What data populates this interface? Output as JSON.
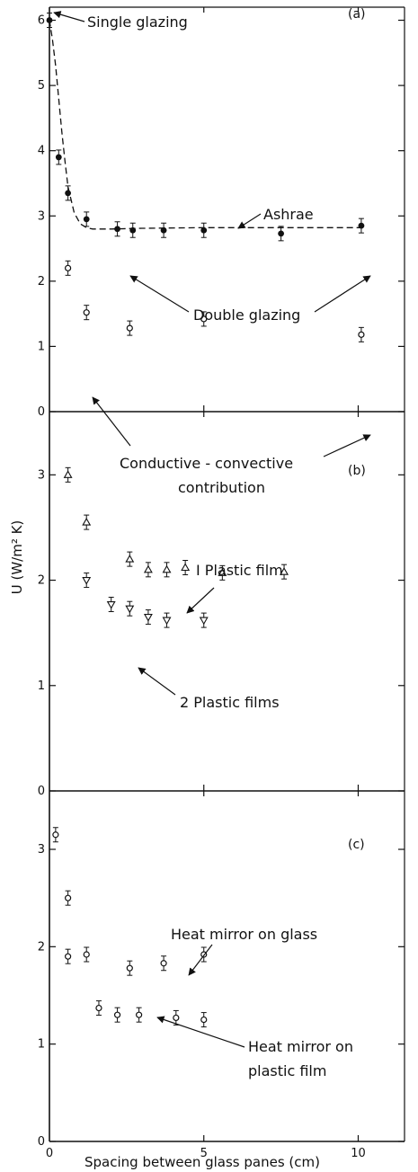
{
  "chart_data": [
    {
      "type": "scatter",
      "panel": "(a)",
      "xlim": [
        0,
        11.5
      ],
      "ylim": [
        0,
        6.2
      ],
      "yticks": [
        0,
        1,
        2,
        3,
        4,
        5,
        6
      ],
      "series": [
        {
          "marker": "filled-circle",
          "x": [
            0,
            0.3,
            0.6,
            1.2,
            2.2,
            2.7,
            3.7,
            5.0,
            7.5,
            10.1
          ],
          "y": [
            6.0,
            3.9,
            3.35,
            2.95,
            2.8,
            2.78,
            2.78,
            2.78,
            2.73,
            2.85
          ]
        },
        {
          "marker": "open-circle",
          "x": [
            0.6,
            1.2,
            2.6,
            5.0,
            10.1
          ],
          "y": [
            2.2,
            1.52,
            1.28,
            1.42,
            1.18
          ]
        },
        {
          "name": "Ashrae",
          "style": "dashed-line",
          "x": [
            0,
            0.1,
            0.2,
            0.3,
            0.4,
            0.5,
            0.6,
            0.8,
            1.0,
            1.2,
            1.4,
            1.6,
            2.0,
            3.0,
            5.0,
            7.5,
            10.1
          ],
          "y": [
            6.0,
            5.7,
            5.3,
            4.8,
            4.3,
            3.85,
            3.45,
            3.05,
            2.88,
            2.82,
            2.8,
            2.8,
            2.8,
            2.81,
            2.82,
            2.82,
            2.82
          ]
        }
      ],
      "annotations": [
        "Single glazing",
        "Ashrae",
        "Double glazing",
        "Conductive - convective",
        "contribution"
      ]
    },
    {
      "type": "scatter",
      "panel": "(b)",
      "xlim": [
        0,
        11.5
      ],
      "ylim": [
        0,
        3.6
      ],
      "yticks": [
        0,
        1,
        2,
        3
      ],
      "series": [
        {
          "name": "I Plastic film",
          "marker": "open-triangle-up",
          "x": [
            0.6,
            1.2,
            2.6,
            3.2,
            3.8,
            4.4,
            5.6,
            7.6
          ],
          "y": [
            3.0,
            2.55,
            2.2,
            2.1,
            2.1,
            2.12,
            2.07,
            2.08
          ]
        },
        {
          "name": "2 Plastic films",
          "marker": "open-triangle-down",
          "x": [
            1.2,
            2.0,
            2.6,
            3.2,
            3.8,
            5.0
          ],
          "y": [
            2.0,
            1.77,
            1.73,
            1.65,
            1.62,
            1.62
          ]
        }
      ],
      "annotations": [
        "I Plastic film",
        "2 Plastic films"
      ]
    },
    {
      "type": "scatter",
      "panel": "(c)",
      "xlim": [
        0,
        11.5
      ],
      "ylim": [
        0,
        3.6
      ],
      "yticks": [
        0,
        1,
        2,
        3
      ],
      "xticks": [
        0,
        5,
        10
      ],
      "series": [
        {
          "name": "Heat mirror on glass",
          "marker": "open-circle",
          "x": [
            0.2,
            0.6,
            0.6,
            1.2,
            2.6,
            3.7,
            5.0
          ],
          "y": [
            3.15,
            2.5,
            1.9,
            1.92,
            1.78,
            1.83,
            1.92
          ]
        },
        {
          "name": "Heat mirror on plastic film",
          "marker": "open-circle",
          "x": [
            1.6,
            2.2,
            2.9,
            4.1,
            5.0
          ],
          "y": [
            1.37,
            1.3,
            1.3,
            1.27,
            1.25
          ]
        }
      ],
      "annotations": [
        "Heat mirror on glass",
        "Heat mirror on",
        "plastic film"
      ]
    }
  ],
  "ylabel": "U (W/m² K)",
  "xlabel": "Spacing between glass panes (cm)",
  "xtick_labels": [
    "0",
    "5",
    "10"
  ],
  "panel_tags": [
    "(a)",
    "(b)",
    "(c)"
  ],
  "annotation_text": {
    "single": "Single glazing",
    "ashrae": "Ashrae",
    "double": "Double glazing",
    "conv1": "Conductive - convective",
    "conv2": "contribution",
    "one_film": "I Plastic film",
    "two_films": "2 Plastic films",
    "hm_glass": "Heat mirror on glass",
    "hm_plastic1": "Heat mirror on",
    "hm_plastic2": "plastic film"
  }
}
